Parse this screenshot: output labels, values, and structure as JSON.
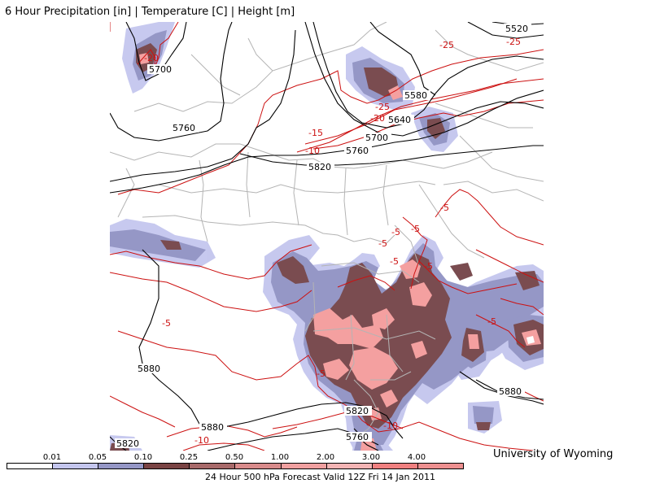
{
  "title": "6 Hour Precipitation [in] | Temperature [C] | Height [m]",
  "credit": "University of Wyoming",
  "footer": "24 Hour 500 hPa Forecast Valid 12Z Fri 14 Jan 2011",
  "legend": {
    "thresholds": [
      "0.01",
      "0.05",
      "0.10",
      "0.25",
      "0.50",
      "1.00",
      "2.00",
      "3.00",
      "4.00"
    ],
    "colors": [
      "#ffffff",
      "#c4c6ee",
      "#9597c6",
      "#7a4444",
      "#a86a6a",
      "#d88b8b",
      "#f0a0a0",
      "#f4b4b4",
      "#f08080",
      "#ee9090"
    ]
  },
  "height_labels": [
    "5520",
    "5700",
    "5580",
    "5640",
    "5700",
    "5760",
    "5760",
    "5820",
    "5880",
    "5880",
    "5880",
    "5820",
    "5820",
    "5760"
  ],
  "temperature_labels": [
    "-25",
    "-25",
    "-20",
    "-25",
    "-20",
    "-15",
    "-10",
    "-5",
    "-5",
    "-5",
    "-5",
    "-5",
    "-5",
    "-5",
    "-5",
    "-5",
    "-10",
    "-10"
  ],
  "colors": {
    "height_contour": "#000000",
    "temperature_contour": "#cc1111",
    "borders": "#b4b4b4",
    "precip_light": "#c4c6ee",
    "precip_mid": "#9597c6",
    "precip_dark": "#7a4c50",
    "precip_heavy": "#f4a0a0"
  }
}
